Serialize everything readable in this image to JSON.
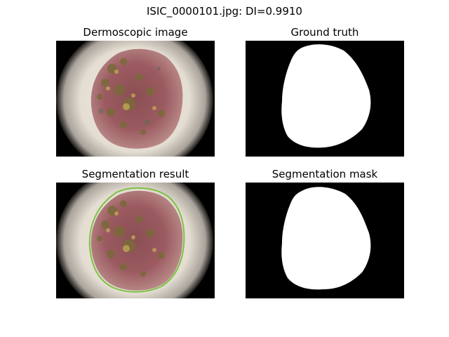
{
  "figure": {
    "suptitle": "ISIC_0000101.jpg: DI=0.9910"
  },
  "panels": [
    {
      "title": "Dermoscopic image"
    },
    {
      "title": "Ground truth"
    },
    {
      "title": "Segmentation result"
    },
    {
      "title": "Segmentation mask"
    }
  ],
  "colors": {
    "background": "#ffffff",
    "mask_background": "#000000",
    "mask_foreground": "#ffffff",
    "contour": "#7cc241"
  }
}
